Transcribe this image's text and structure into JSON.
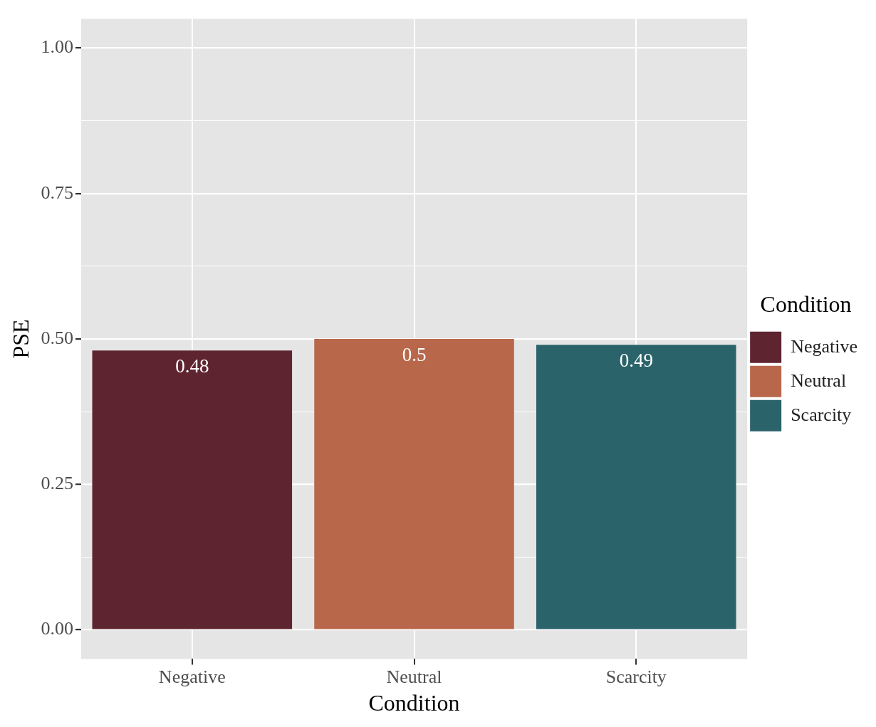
{
  "chart_data": {
    "type": "bar",
    "xlabel": "Condition",
    "ylabel": "PSE",
    "legend_title": "Condition",
    "categories": [
      "Negative",
      "Neutral",
      "Scarcity"
    ],
    "series": [
      {
        "name": "Negative",
        "color": "#5e2531",
        "values": [
          0.48,
          null,
          null
        ]
      },
      {
        "name": "Neutral",
        "color": "#b9674b",
        "values": [
          null,
          0.5,
          null
        ]
      },
      {
        "name": "Scarcity",
        "color": "#2b636b",
        "values": [
          null,
          null,
          0.49
        ]
      }
    ],
    "ylim": [
      -0.05,
      1.05
    ],
    "yticks": [
      {
        "value": 0,
        "label": "0.00"
      },
      {
        "value": 0.125,
        "label": null
      },
      {
        "value": 0.25,
        "label": "0.25"
      },
      {
        "value": 0.375,
        "label": null
      },
      {
        "value": 0.5,
        "label": "0.50"
      },
      {
        "value": 0.625,
        "label": null
      },
      {
        "value": 0.75,
        "label": "0.75"
      },
      {
        "value": 0.875,
        "label": null
      },
      {
        "value": 1,
        "label": "1.00"
      }
    ],
    "grid": true,
    "legend": "right",
    "data_labels": true
  }
}
